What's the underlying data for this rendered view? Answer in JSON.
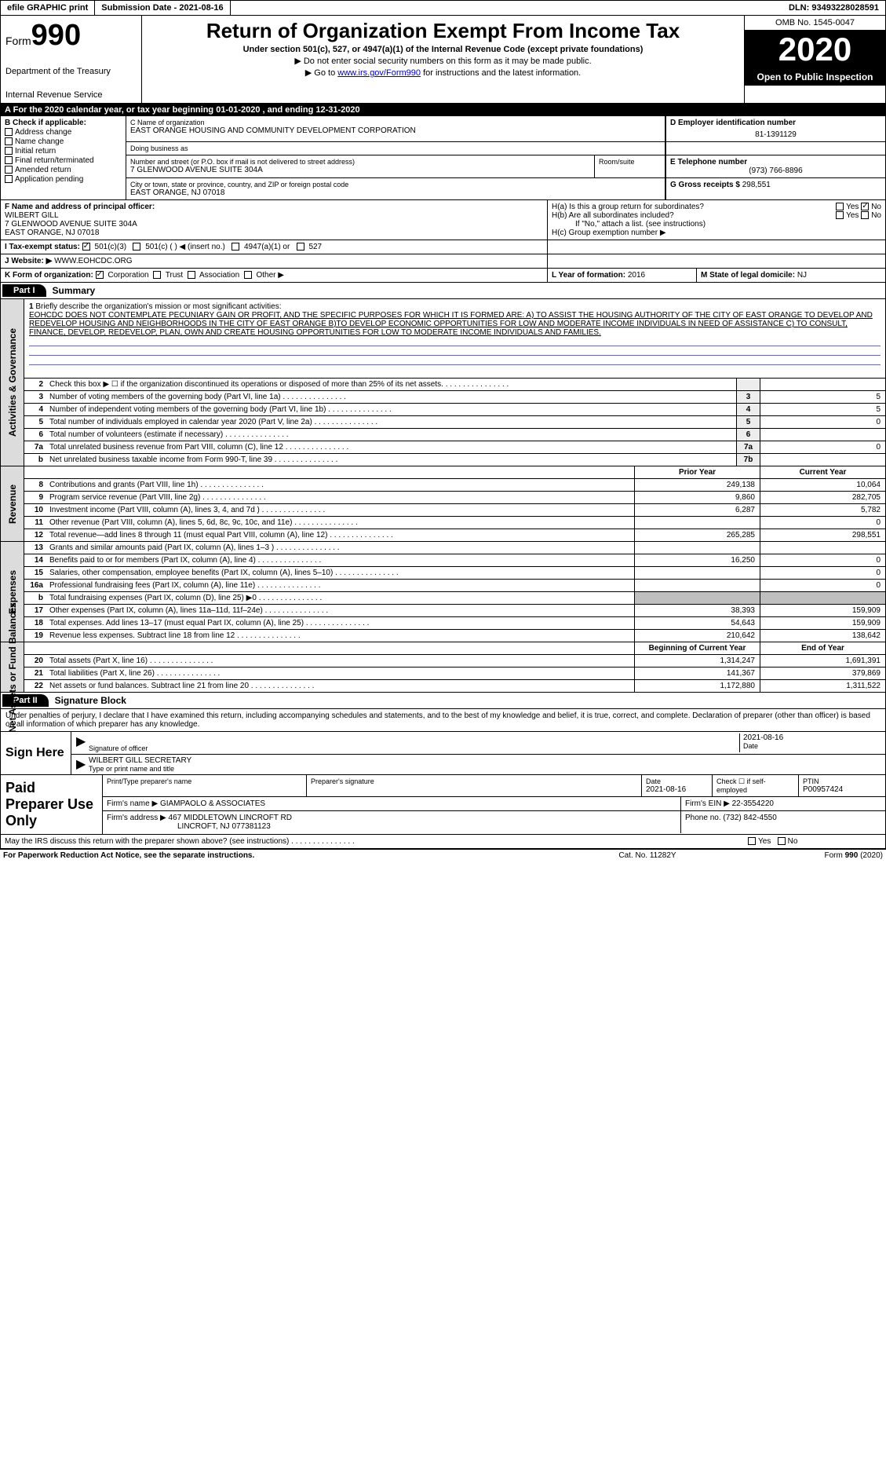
{
  "topbar": {
    "efile": "efile GRAPHIC print",
    "sub_label": "Submission Date - ",
    "sub_date": "2021-08-16",
    "dln_label": "DLN: ",
    "dln": "93493228028591"
  },
  "header": {
    "form_word": "Form",
    "form_num": "990",
    "dept1": "Department of the Treasury",
    "dept2": "Internal Revenue Service",
    "title": "Return of Organization Exempt From Income Tax",
    "subtitle": "Under section 501(c), 527, or 4947(a)(1) of the Internal Revenue Code (except private foundations)",
    "instr1": "▶ Do not enter social security numbers on this form as it may be made public.",
    "instr2a": "▶ Go to ",
    "instr2_link": "www.irs.gov/Form990",
    "instr2b": " for instructions and the latest information.",
    "omb": "OMB No. 1545-0047",
    "year": "2020",
    "open_pub": "Open to Public Inspection"
  },
  "period": {
    "text": "For the 2020 calendar year, or tax year beginning 01-01-2020   , and ending 12-31-2020"
  },
  "secB": {
    "title": "B Check if applicable:",
    "items": [
      "Address change",
      "Name change",
      "Initial return",
      "Final return/terminated",
      "Amended return",
      "Application pending"
    ]
  },
  "secC": {
    "name_label": "C Name of organization",
    "name": "EAST ORANGE HOUSING AND COMMUNITY DEVELOPMENT CORPORATION",
    "dba_label": "Doing business as",
    "dba": "",
    "street_label": "Number and street (or P.O. box if mail is not delivered to street address)",
    "street": "7 GLENWOOD AVENUE SUITE 304A",
    "room_label": "Room/suite",
    "city_label": "City or town, state or province, country, and ZIP or foreign postal code",
    "city": "EAST ORANGE, NJ  07018"
  },
  "secD": {
    "label": "D Employer identification number",
    "val": "81-1391129"
  },
  "secE": {
    "label": "E Telephone number",
    "val": "(973) 766-8896"
  },
  "secG": {
    "label": "G Gross receipts $",
    "val": "298,551"
  },
  "secF": {
    "label": "F  Name and address of principal officer:",
    "name": "WILBERT GILL",
    "addr1": "7 GLENWOOD AVENUE SUITE 304A",
    "addr2": "EAST ORANGE, NJ  07018"
  },
  "secH": {
    "a_label": "H(a)  Is this a group return for subordinates?",
    "yes": "Yes",
    "no": "No",
    "b_label": "H(b)  Are all subordinates included?",
    "b_note": "If \"No,\" attach a list. (see instructions)",
    "c_label": "H(c)  Group exemption number ▶"
  },
  "secI": {
    "label": "I    Tax-exempt status:",
    "opt1": "501(c)(3)",
    "opt2": "501(c) (  ) ◀ (insert no.)",
    "opt3": "4947(a)(1) or",
    "opt4": "527"
  },
  "secJ": {
    "label": "J   Website: ▶",
    "val": "WWW.EOHCDC.ORG"
  },
  "secK": {
    "label": "K Form of organization:",
    "opts": [
      "Corporation",
      "Trust",
      "Association",
      "Other ▶"
    ],
    "checked": 0
  },
  "secL": {
    "label": "L Year of formation:",
    "val": "2016"
  },
  "secM": {
    "label": "M State of legal domicile:",
    "val": "NJ"
  },
  "part1": {
    "tab": "Part I",
    "title": "Summary"
  },
  "mission": {
    "num": "1",
    "label": "Briefly describe the organization's mission or most significant activities:",
    "text": "EOHCDC DOES NOT CONTEMPLATE PECUNIARY GAIN OR PROFIT, AND THE SPECIFIC PURPOSES FOR WHICH IT IS FORMED ARE: A) TO ASSIST THE HOUSING AUTHORITY OF THE CITY OF EAST ORANGE TO DEVELOP AND REDEVELOP HOUSING AND NEIGHBORHOODS IN THE CITY OF EAST ORANGE B)TO DEVELOP ECONOMIC OPPORTUNITIES FOR LOW AND MODERATE INCOME INDIVIDUALS IN NEED OF ASSISTANCE C) TO CONSULT, FINANCE, DEVELOP, REDEVELOP, PLAN, OWN AND CREATE HOUSING OPPORTUNITIES FOR LOW TO MODERATE INCOME INDIVIDUALS AND FAMILIES."
  },
  "side_labels": {
    "gov": "Activities & Governance",
    "rev": "Revenue",
    "exp": "Expenses",
    "net": "Net Assets or Fund Balances"
  },
  "gov_rows": [
    {
      "n": "2",
      "label": "Check this box ▶ ☐  if the organization discontinued its operations or disposed of more than 25% of its net assets.",
      "box": "",
      "val": ""
    },
    {
      "n": "3",
      "label": "Number of voting members of the governing body (Part VI, line 1a)",
      "box": "3",
      "val": "5"
    },
    {
      "n": "4",
      "label": "Number of independent voting members of the governing body (Part VI, line 1b)",
      "box": "4",
      "val": "5"
    },
    {
      "n": "5",
      "label": "Total number of individuals employed in calendar year 2020 (Part V, line 2a)",
      "box": "5",
      "val": "0"
    },
    {
      "n": "6",
      "label": "Total number of volunteers (estimate if necessary)",
      "box": "6",
      "val": ""
    },
    {
      "n": "7a",
      "label": "Total unrelated business revenue from Part VIII, column (C), line 12",
      "box": "7a",
      "val": "0"
    },
    {
      "n": "b",
      "label": "Net unrelated business taxable income from Form 990-T, line 39",
      "box": "7b",
      "val": ""
    }
  ],
  "fin_hdr": {
    "prior": "Prior Year",
    "current": "Current Year"
  },
  "rev_rows": [
    {
      "n": "8",
      "label": "Contributions and grants (Part VIII, line 1h)",
      "p": "249,138",
      "c": "10,064"
    },
    {
      "n": "9",
      "label": "Program service revenue (Part VIII, line 2g)",
      "p": "9,860",
      "c": "282,705"
    },
    {
      "n": "10",
      "label": "Investment income (Part VIII, column (A), lines 3, 4, and 7d )",
      "p": "6,287",
      "c": "5,782"
    },
    {
      "n": "11",
      "label": "Other revenue (Part VIII, column (A), lines 5, 6d, 8c, 9c, 10c, and 11e)",
      "p": "",
      "c": "0"
    },
    {
      "n": "12",
      "label": "Total revenue—add lines 8 through 11 (must equal Part VIII, column (A), line 12)",
      "p": "265,285",
      "c": "298,551"
    }
  ],
  "exp_rows": [
    {
      "n": "13",
      "label": "Grants and similar amounts paid (Part IX, column (A), lines 1–3 )",
      "p": "",
      "c": ""
    },
    {
      "n": "14",
      "label": "Benefits paid to or for members (Part IX, column (A), line 4)",
      "p": "16,250",
      "c": "0"
    },
    {
      "n": "15",
      "label": "Salaries, other compensation, employee benefits (Part IX, column (A), lines 5–10)",
      "p": "",
      "c": "0"
    },
    {
      "n": "16a",
      "label": "Professional fundraising fees (Part IX, column (A), line 11e)",
      "p": "",
      "c": "0"
    },
    {
      "n": "b",
      "label": "Total fundraising expenses (Part IX, column (D), line 25) ▶0",
      "p": "GREY",
      "c": "GREY"
    },
    {
      "n": "17",
      "label": "Other expenses (Part IX, column (A), lines 11a–11d, 11f–24e)",
      "p": "38,393",
      "c": "159,909"
    },
    {
      "n": "18",
      "label": "Total expenses. Add lines 13–17 (must equal Part IX, column (A), line 25)",
      "p": "54,643",
      "c": "159,909"
    },
    {
      "n": "19",
      "label": "Revenue less expenses. Subtract line 18 from line 12",
      "p": "210,642",
      "c": "138,642"
    }
  ],
  "net_hdr": {
    "beg": "Beginning of Current Year",
    "end": "End of Year"
  },
  "net_rows": [
    {
      "n": "20",
      "label": "Total assets (Part X, line 16)",
      "p": "1,314,247",
      "c": "1,691,391"
    },
    {
      "n": "21",
      "label": "Total liabilities (Part X, line 26)",
      "p": "141,367",
      "c": "379,869"
    },
    {
      "n": "22",
      "label": "Net assets or fund balances. Subtract line 21 from line 20",
      "p": "1,172,880",
      "c": "1,311,522"
    }
  ],
  "part2": {
    "tab": "Part II",
    "title": "Signature Block"
  },
  "sig": {
    "decl": "Under penalties of perjury, I declare that I have examined this return, including accompanying schedules and statements, and to the best of my knowledge and belief, it is true, correct, and complete. Declaration of preparer (other than officer) is based on all information of which preparer has any knowledge.",
    "sign_here": "Sign Here",
    "sig_officer": "Signature of officer",
    "date": "Date",
    "date_val": "2021-08-16",
    "name_title": "WILBERT GILL SECRETARY",
    "name_label": "Type or print name and title"
  },
  "prep": {
    "left": "Paid Preparer Use Only",
    "h_name": "Print/Type preparer's name",
    "h_sig": "Preparer's signature",
    "h_date": "Date",
    "date_val": "2021-08-16",
    "h_check": "Check ☐ if self-employed",
    "h_ptin": "PTIN",
    "ptin": "P00957424",
    "firm_name_l": "Firm's name    ▶",
    "firm_name": "GIAMPAOLO & ASSOCIATES",
    "firm_ein_l": "Firm's EIN ▶",
    "firm_ein": "22-3554220",
    "firm_addr_l": "Firm's address ▶",
    "firm_addr1": "467 MIDDLETOWN LINCROFT RD",
    "firm_addr2": "LINCROFT, NJ  077381123",
    "phone_l": "Phone no.",
    "phone": "(732) 842-4550"
  },
  "discuss": {
    "label": "May the IRS discuss this return with the preparer shown above? (see instructions)",
    "yes": "Yes",
    "no": "No"
  },
  "footer": {
    "left": "For Paperwork Reduction Act Notice, see the separate instructions.",
    "mid": "Cat. No. 11282Y",
    "right": "Form 990 (2020)"
  }
}
